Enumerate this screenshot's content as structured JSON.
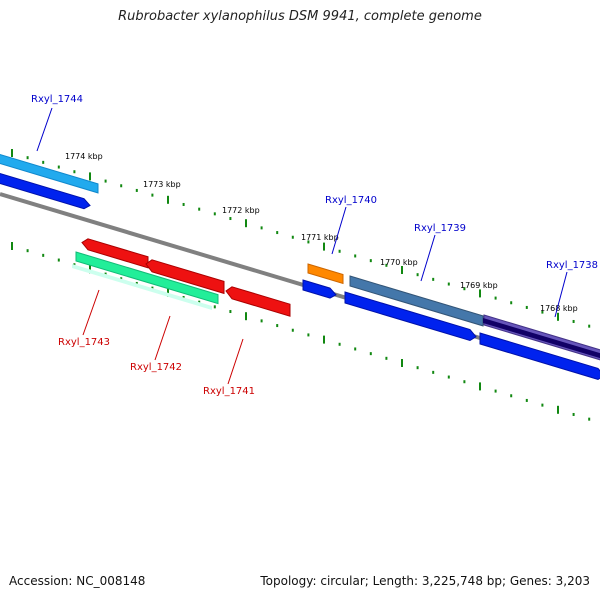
{
  "title": "Rubrobacter xylanophilus DSM 9941, complete genome",
  "footer": {
    "accession": "Accession: NC_008148",
    "summary": "Topology: circular; Length: 3,225,748 bp; Genes: 3,203"
  },
  "colors": {
    "backbone": "#808080",
    "tick": "#118811",
    "forward_label": "#0000cc",
    "reverse_label": "#cc0000"
  },
  "kbp_labels": [
    "1774 kbp",
    "1773 kbp",
    "1772 kbp",
    "1771 kbp",
    "1770 kbp",
    "1769 kbp",
    "1768 kbp"
  ],
  "genes": [
    {
      "label": "Rxyl_1744",
      "strand": "+",
      "color": "#22aaee"
    },
    {
      "label": "Rxyl_1740",
      "strand": "+",
      "color": "#ff8800"
    },
    {
      "label": "Rxyl_1739",
      "strand": "+",
      "color": "#4477aa"
    },
    {
      "label": "Rxyl_1738",
      "strand": "+",
      "color": "#6655bb"
    },
    {
      "label": "Rxyl_1743",
      "strand": "-",
      "color": "#22ee99"
    },
    {
      "label": "Rxyl_1742",
      "strand": "-",
      "color": "#ee1111"
    },
    {
      "label": "Rxyl_1741",
      "strand": "-",
      "color": "#ee1111"
    }
  ]
}
